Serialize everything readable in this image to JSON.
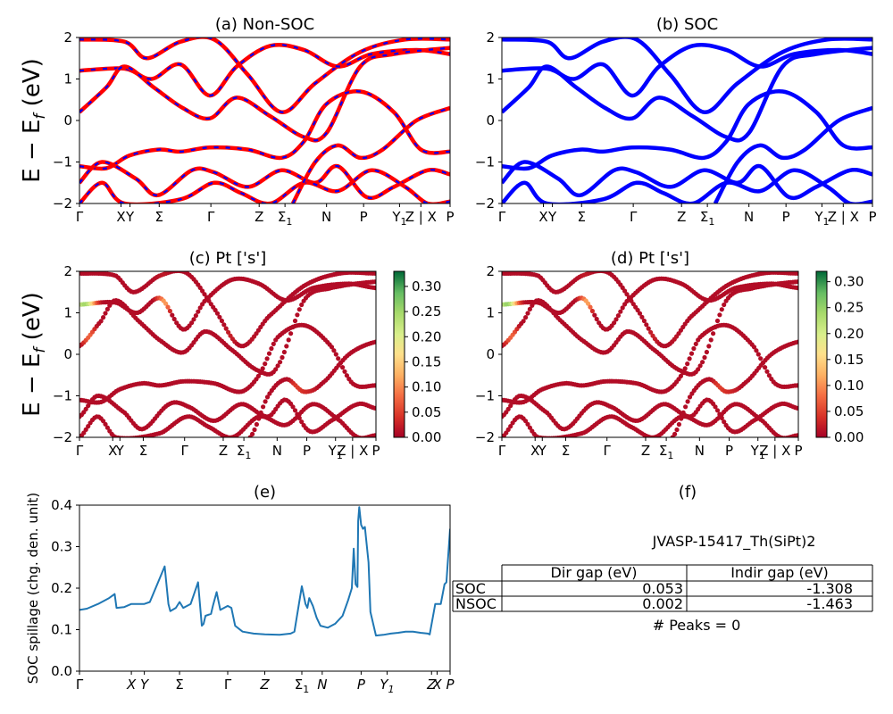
{
  "figure": {
    "ylabel_energy": "E − E",
    "ylabel_energy_sub": "f",
    "ylabel_energy_unit": "(eV)"
  },
  "colors": {
    "nonsoc_base": "#ff0000",
    "nonsoc_dash": "#0000ff",
    "soc": "#0000ff",
    "spillage": "#1f77b4"
  },
  "chart_data": [
    {
      "id": "a",
      "type": "line",
      "title": "(a) Non-SOC",
      "ylim": [
        -2,
        2
      ],
      "yticks": [
        "−2",
        "−1",
        "0",
        "1",
        "2"
      ],
      "xlabels": [
        "Γ",
        "X",
        "Y",
        "Σ",
        "Γ",
        "Z",
        "Σ1",
        "N",
        "P",
        "Y1",
        "Z | X",
        "P"
      ],
      "xticks": [
        0,
        0.185,
        0.225,
        0.355,
        0.585,
        0.8,
        0.915,
        1.1,
        1.265,
        1.425,
        1.52,
        1.65
      ],
      "series_style": "red with blue dashes",
      "bands": [
        [
          [
            0,
            1.95
          ],
          [
            0.2,
            1.9
          ],
          [
            0.3,
            1.5
          ],
          [
            0.45,
            1.9
          ],
          [
            0.6,
            1.95
          ],
          [
            0.75,
            1.1
          ],
          [
            0.9,
            0.2
          ],
          [
            1.05,
            0.9
          ],
          [
            1.25,
            1.65
          ],
          [
            1.45,
            1.95
          ],
          [
            1.65,
            1.95
          ]
        ],
        [
          [
            0,
            1.2
          ],
          [
            0.2,
            1.25
          ],
          [
            0.32,
            1.0
          ],
          [
            0.45,
            1.35
          ],
          [
            0.58,
            0.6
          ],
          [
            0.7,
            1.3
          ],
          [
            0.85,
            1.8
          ],
          [
            1.0,
            1.7
          ],
          [
            1.15,
            1.3
          ],
          [
            1.3,
            1.6
          ],
          [
            1.5,
            1.7
          ],
          [
            1.65,
            1.6
          ]
        ],
        [
          [
            0,
            0.2
          ],
          [
            0.12,
            0.8
          ],
          [
            0.2,
            1.3
          ],
          [
            0.33,
            0.8
          ],
          [
            0.46,
            0.3
          ],
          [
            0.58,
            0.05
          ],
          [
            0.7,
            0.55
          ],
          [
            0.85,
            0.1
          ],
          [
            1.0,
            -0.4
          ],
          [
            1.1,
            -0.3
          ],
          [
            1.25,
            1.3
          ],
          [
            1.4,
            1.6
          ],
          [
            1.65,
            1.75
          ]
        ],
        [
          [
            0,
            -1.1
          ],
          [
            0.12,
            -1.15
          ],
          [
            0.22,
            -0.85
          ],
          [
            0.35,
            -0.7
          ],
          [
            0.45,
            -0.75
          ],
          [
            0.58,
            -0.65
          ],
          [
            0.75,
            -0.7
          ],
          [
            0.9,
            -0.9
          ],
          [
            1.0,
            -0.5
          ],
          [
            1.1,
            0.4
          ],
          [
            1.25,
            0.7
          ],
          [
            1.4,
            0.2
          ],
          [
            1.52,
            -0.7
          ],
          [
            1.65,
            -0.75
          ]
        ],
        [
          [
            0,
            -1.5
          ],
          [
            0.1,
            -1.0
          ],
          [
            0.25,
            -1.4
          ],
          [
            0.35,
            -1.8
          ],
          [
            0.5,
            -1.2
          ],
          [
            0.6,
            -1.25
          ],
          [
            0.75,
            -1.6
          ],
          [
            0.9,
            -1.2
          ],
          [
            1.05,
            -1.5
          ],
          [
            1.15,
            -1.1
          ],
          [
            1.28,
            -1.85
          ],
          [
            1.4,
            -1.6
          ],
          [
            1.55,
            -1.2
          ],
          [
            1.65,
            -1.3
          ]
        ],
        [
          [
            0,
            -2.0
          ],
          [
            0.1,
            -1.5
          ],
          [
            0.2,
            -2.0
          ],
          [
            0.45,
            -1.9
          ],
          [
            0.6,
            -1.5
          ],
          [
            0.72,
            -1.75
          ],
          [
            0.85,
            -2.0
          ],
          [
            1.0,
            -1.5
          ],
          [
            1.15,
            -1.7
          ],
          [
            1.3,
            -1.2
          ],
          [
            1.45,
            -1.6
          ],
          [
            1.55,
            -2.0
          ],
          [
            1.65,
            -1.95
          ]
        ],
        [
          [
            0.95,
            -2.0
          ],
          [
            1.05,
            -1.0
          ],
          [
            1.15,
            -0.6
          ],
          [
            1.25,
            -0.9
          ],
          [
            1.35,
            -0.7
          ],
          [
            1.5,
            0.0
          ],
          [
            1.65,
            0.3
          ]
        ]
      ]
    },
    {
      "id": "b",
      "type": "line",
      "title": "(b) SOC",
      "ylim": [
        -2,
        2
      ],
      "yticks": [
        "−2",
        "−1",
        "0",
        "1",
        "2"
      ],
      "xlabels": [
        "Γ",
        "X",
        "Y",
        "Σ",
        "Γ",
        "Z",
        "Σ1",
        "N",
        "P",
        "Y1",
        "Z | X",
        "P"
      ],
      "xticks": [
        0,
        0.185,
        0.225,
        0.355,
        0.585,
        0.8,
        0.915,
        1.1,
        1.265,
        1.425,
        1.52,
        1.65
      ],
      "series_style": "blue thick",
      "bands": [
        [
          [
            0,
            1.95
          ],
          [
            0.2,
            1.9
          ],
          [
            0.3,
            1.5
          ],
          [
            0.45,
            1.9
          ],
          [
            0.6,
            1.95
          ],
          [
            0.75,
            1.1
          ],
          [
            0.9,
            0.2
          ],
          [
            1.05,
            0.9
          ],
          [
            1.25,
            1.65
          ],
          [
            1.45,
            1.95
          ],
          [
            1.65,
            1.95
          ]
        ],
        [
          [
            0,
            1.2
          ],
          [
            0.2,
            1.25
          ],
          [
            0.32,
            1.0
          ],
          [
            0.45,
            1.35
          ],
          [
            0.58,
            0.6
          ],
          [
            0.7,
            1.3
          ],
          [
            0.85,
            1.8
          ],
          [
            1.0,
            1.7
          ],
          [
            1.15,
            1.3
          ],
          [
            1.3,
            1.6
          ],
          [
            1.5,
            1.7
          ],
          [
            1.65,
            1.6
          ]
        ],
        [
          [
            0,
            0.2
          ],
          [
            0.12,
            0.8
          ],
          [
            0.2,
            1.3
          ],
          [
            0.33,
            0.8
          ],
          [
            0.46,
            0.3
          ],
          [
            0.58,
            0.05
          ],
          [
            0.7,
            0.55
          ],
          [
            0.85,
            0.1
          ],
          [
            1.0,
            -0.4
          ],
          [
            1.1,
            -0.3
          ],
          [
            1.25,
            1.3
          ],
          [
            1.4,
            1.6
          ],
          [
            1.65,
            1.75
          ]
        ],
        [
          [
            0,
            -1.1
          ],
          [
            0.12,
            -1.15
          ],
          [
            0.22,
            -0.85
          ],
          [
            0.35,
            -0.7
          ],
          [
            0.45,
            -0.75
          ],
          [
            0.58,
            -0.65
          ],
          [
            0.75,
            -0.7
          ],
          [
            0.9,
            -0.9
          ],
          [
            1.0,
            -0.5
          ],
          [
            1.1,
            0.4
          ],
          [
            1.25,
            0.7
          ],
          [
            1.4,
            0.2
          ],
          [
            1.52,
            -0.6
          ],
          [
            1.65,
            -0.65
          ]
        ],
        [
          [
            0,
            -1.5
          ],
          [
            0.1,
            -1.0
          ],
          [
            0.25,
            -1.4
          ],
          [
            0.35,
            -1.8
          ],
          [
            0.5,
            -1.2
          ],
          [
            0.6,
            -1.25
          ],
          [
            0.75,
            -1.6
          ],
          [
            0.9,
            -1.2
          ],
          [
            1.05,
            -1.5
          ],
          [
            1.15,
            -1.1
          ],
          [
            1.28,
            -1.85
          ],
          [
            1.4,
            -1.6
          ],
          [
            1.55,
            -1.2
          ],
          [
            1.65,
            -1.3
          ]
        ],
        [
          [
            0,
            -2.0
          ],
          [
            0.1,
            -1.5
          ],
          [
            0.2,
            -2.0
          ],
          [
            0.45,
            -1.9
          ],
          [
            0.6,
            -1.5
          ],
          [
            0.72,
            -1.75
          ],
          [
            0.85,
            -2.0
          ],
          [
            1.0,
            -1.5
          ],
          [
            1.15,
            -1.7
          ],
          [
            1.3,
            -1.2
          ],
          [
            1.45,
            -1.6
          ],
          [
            1.55,
            -2.0
          ],
          [
            1.65,
            -1.95
          ]
        ],
        [
          [
            0.95,
            -2.0
          ],
          [
            1.05,
            -1.0
          ],
          [
            1.15,
            -0.6
          ],
          [
            1.25,
            -0.9
          ],
          [
            1.35,
            -0.7
          ],
          [
            1.5,
            0.0
          ],
          [
            1.65,
            0.3
          ]
        ]
      ]
    },
    {
      "id": "c",
      "type": "scatter",
      "title": "(c)  Pt ['s']",
      "ylim": [
        -2,
        2
      ],
      "yticks": [
        "−2",
        "−1",
        "0",
        "1",
        "2"
      ],
      "xlabels": [
        "Γ",
        "X",
        "Y",
        "Σ",
        "Γ",
        "Z",
        "Σ1",
        "N",
        "P",
        "Y1",
        "Z | X",
        "P"
      ],
      "xticks": [
        0,
        0.185,
        0.225,
        0.355,
        0.585,
        0.8,
        0.915,
        1.1,
        1.265,
        1.425,
        1.52,
        1.65
      ],
      "colorbar": {
        "min": 0.0,
        "max": 0.33,
        "ticks": [
          "0.00",
          "0.05",
          "0.10",
          "0.15",
          "0.20",
          "0.25",
          "0.30"
        ],
        "colormap": "RdYlGn"
      },
      "weight_highlights": [
        {
          "x": 0.03,
          "y": 1.22,
          "weight": 0.25
        },
        {
          "x": 0.5,
          "y": 1.55,
          "weight": 0.25
        },
        {
          "x": 0.52,
          "y": 1.4,
          "weight": 0.28
        },
        {
          "x": 0.1,
          "y": 0.3,
          "weight": 0.18
        },
        {
          "x": 1.25,
          "y": -0.65,
          "weight": 0.1
        },
        {
          "x": 0.9,
          "y": 0.6,
          "weight": 0.1
        }
      ]
    },
    {
      "id": "d",
      "type": "scatter",
      "title": "(d) Pt ['s']",
      "ylim": [
        -2,
        2
      ],
      "yticks": [
        "−2",
        "−1",
        "0",
        "1",
        "2"
      ],
      "xlabels": [
        "Γ",
        "X",
        "Y",
        "Σ",
        "Γ",
        "Z",
        "Σ1",
        "N",
        "P",
        "Y1",
        "Z | X",
        "P"
      ],
      "xticks": [
        0,
        0.185,
        0.225,
        0.355,
        0.585,
        0.8,
        0.915,
        1.1,
        1.265,
        1.425,
        1.52,
        1.65
      ],
      "colorbar": {
        "min": 0.0,
        "max": 0.32,
        "ticks": [
          "0.00",
          "0.05",
          "0.10",
          "0.15",
          "0.20",
          "0.25",
          "0.30"
        ],
        "colormap": "RdYlGn"
      },
      "weight_highlights": [
        {
          "x": 0.03,
          "y": 1.22,
          "weight": 0.25
        },
        {
          "x": 0.5,
          "y": 1.55,
          "weight": 0.25
        },
        {
          "x": 0.52,
          "y": 1.4,
          "weight": 0.28
        },
        {
          "x": 0.1,
          "y": 0.3,
          "weight": 0.18
        },
        {
          "x": 1.25,
          "y": -0.65,
          "weight": 0.1
        },
        {
          "x": 0.9,
          "y": 0.6,
          "weight": 0.1
        }
      ]
    },
    {
      "id": "e",
      "type": "line",
      "title": "(e)",
      "ylabel": "SOC spillage (chg. den. unit)",
      "ylim": [
        0,
        0.42
      ],
      "yticks": [
        "0.0",
        "0.1",
        "0.2",
        "0.3",
        "0.4"
      ],
      "xlabels": [
        "Γ",
        "X",
        "Y",
        "Σ",
        "Γ",
        "Z",
        "Σ1",
        "N",
        "P",
        "Y1",
        "Z",
        "X",
        "P"
      ],
      "xticks": [
        0,
        0.14,
        0.175,
        0.27,
        0.4,
        0.5,
        0.6,
        0.655,
        0.76,
        0.83,
        0.95,
        0.965,
        1.0
      ],
      "x": [
        0,
        0.02,
        0.05,
        0.08,
        0.095,
        0.1,
        0.12,
        0.14,
        0.16,
        0.175,
        0.19,
        0.21,
        0.23,
        0.24,
        0.245,
        0.26,
        0.27,
        0.28,
        0.3,
        0.32,
        0.33,
        0.335,
        0.34,
        0.355,
        0.36,
        0.37,
        0.38,
        0.4,
        0.41,
        0.42,
        0.44,
        0.47,
        0.5,
        0.54,
        0.57,
        0.58,
        0.6,
        0.61,
        0.615,
        0.62,
        0.63,
        0.64,
        0.65,
        0.67,
        0.69,
        0.71,
        0.725,
        0.735,
        0.74,
        0.745,
        0.75,
        0.752,
        0.755,
        0.76,
        0.765,
        0.77,
        0.78,
        0.785,
        0.8,
        0.82,
        0.84,
        0.86,
        0.88,
        0.9,
        0.92,
        0.94,
        0.945,
        0.96,
        0.975,
        0.985,
        0.99,
        1.0
      ],
      "values": [
        0.155,
        0.158,
        0.17,
        0.185,
        0.195,
        0.16,
        0.162,
        0.17,
        0.17,
        0.17,
        0.175,
        0.22,
        0.265,
        0.17,
        0.152,
        0.16,
        0.175,
        0.16,
        0.17,
        0.225,
        0.115,
        0.12,
        0.14,
        0.145,
        0.165,
        0.2,
        0.155,
        0.165,
        0.16,
        0.115,
        0.1,
        0.095,
        0.093,
        0.092,
        0.095,
        0.1,
        0.215,
        0.17,
        0.16,
        0.185,
        0.165,
        0.135,
        0.115,
        0.11,
        0.12,
        0.14,
        0.18,
        0.21,
        0.31,
        0.22,
        0.213,
        0.38,
        0.415,
        0.37,
        0.36,
        0.365,
        0.275,
        0.15,
        0.09,
        0.092,
        0.095,
        0.097,
        0.1,
        0.1,
        0.097,
        0.095,
        0.093,
        0.17,
        0.17,
        0.22,
        0.225,
        0.36
      ]
    }
  ],
  "info": {
    "title": "(f)",
    "material": "JVASP-15417_Th(SiPt)2",
    "table": {
      "headers": [
        "",
        "Dir gap (eV)",
        "Indir gap (eV)"
      ],
      "rows": [
        {
          "label": "SOC",
          "dir": "0.053",
          "indir": "-1.308"
        },
        {
          "label": "NSOC",
          "dir": "0.002",
          "indir": "-1.463"
        }
      ]
    },
    "peaks": "# Peaks = 0"
  }
}
